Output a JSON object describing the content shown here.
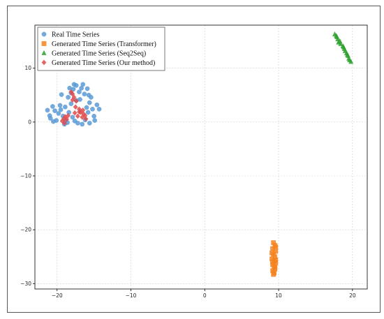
{
  "chart_data": {
    "type": "scatter",
    "xlim": [
      -23,
      22
    ],
    "ylim": [
      -31,
      18
    ],
    "x_ticks": [
      -20,
      -10,
      0,
      10,
      20
    ],
    "y_ticks": [
      10,
      0,
      -10,
      -20,
      -30
    ],
    "x_tick_labels": [
      "−20",
      "−10",
      "0",
      "10",
      "20"
    ],
    "y_tick_labels": [
      "10",
      "0",
      "−10",
      "−20",
      "−30"
    ],
    "grid": true,
    "legend_position": "top-left",
    "series": [
      {
        "name": "Real Time Series",
        "marker": "circle",
        "color": "#5b9bd5",
        "points": [
          [
            -20.6,
            2.9
          ],
          [
            -20.3,
            2.1
          ],
          [
            -21.0,
            1.2
          ],
          [
            -19.8,
            1.6
          ],
          [
            -20.9,
            0.7
          ],
          [
            -20.1,
            0.3
          ],
          [
            -19.5,
            2.3
          ],
          [
            -19.2,
            1.1
          ],
          [
            -18.8,
            0.4
          ],
          [
            -19.6,
            3.1
          ],
          [
            -21.3,
            2.2
          ],
          [
            -18.9,
            2.8
          ],
          [
            -18.1,
            3.4
          ],
          [
            -18.4,
            1.8
          ],
          [
            -17.9,
            0.9
          ],
          [
            -18.6,
            -0.1
          ],
          [
            -17.6,
            0.2
          ],
          [
            -20.5,
            0.1
          ],
          [
            -19.0,
            -0.4
          ],
          [
            -17.2,
            -0.2
          ],
          [
            -18.5,
            4.6
          ],
          [
            -18.1,
            5.4
          ],
          [
            -17.8,
            6.1
          ],
          [
            -17.4,
            6.8
          ],
          [
            -17.0,
            5.6
          ],
          [
            -16.7,
            6.3
          ],
          [
            -16.3,
            5.2
          ],
          [
            -15.9,
            6.2
          ],
          [
            -15.7,
            5.0
          ],
          [
            -15.4,
            4.6
          ],
          [
            -16.9,
            4.2
          ],
          [
            -17.7,
            7.0
          ],
          [
            -16.5,
            7.0
          ],
          [
            -18.3,
            6.3
          ],
          [
            -15.6,
            3.6
          ],
          [
            -15.2,
            2.4
          ],
          [
            -15.8,
            1.8
          ],
          [
            -14.3,
            2.4
          ],
          [
            -15.0,
            1.1
          ],
          [
            -14.9,
            0.3
          ],
          [
            -15.6,
            -0.2
          ],
          [
            -16.2,
            0.4
          ],
          [
            -16.6,
            -0.4
          ],
          [
            -19.4,
            5.1
          ],
          [
            -17.4,
            4.0
          ],
          [
            -14.6,
            3.2
          ],
          [
            -16.0,
            2.7
          ]
        ]
      },
      {
        "name": "Generated Time Series (Transformer)",
        "marker": "square",
        "color": "#f5821f",
        "points": [
          [
            9.3,
            -22.4
          ],
          [
            9.5,
            -22.9
          ],
          [
            9.2,
            -23.5
          ],
          [
            9.6,
            -24.0
          ],
          [
            9.3,
            -24.6
          ],
          [
            9.5,
            -25.0
          ],
          [
            9.1,
            -25.4
          ],
          [
            9.4,
            -25.8
          ],
          [
            9.6,
            -26.2
          ],
          [
            9.2,
            -26.5
          ],
          [
            9.4,
            -26.9
          ],
          [
            9.5,
            -27.3
          ],
          [
            9.2,
            -27.6
          ],
          [
            9.4,
            -28.0
          ],
          [
            9.3,
            -28.3
          ],
          [
            9.6,
            -23.2
          ],
          [
            9.1,
            -24.3
          ],
          [
            9.6,
            -25.6
          ],
          [
            9.2,
            -26.0
          ],
          [
            9.5,
            -27.0
          ]
        ]
      },
      {
        "name": "Generated Time Series (Seq2Seq)",
        "marker": "triangle",
        "color": "#2ca02c",
        "points": [
          [
            17.6,
            16.3
          ],
          [
            17.9,
            15.8
          ],
          [
            18.0,
            15.4
          ],
          [
            18.3,
            15.0
          ],
          [
            18.4,
            14.5
          ],
          [
            18.7,
            14.1
          ],
          [
            18.9,
            13.6
          ],
          [
            19.0,
            13.2
          ],
          [
            19.2,
            12.8
          ],
          [
            19.4,
            12.3
          ],
          [
            19.5,
            11.8
          ],
          [
            19.8,
            11.2
          ],
          [
            18.1,
            14.8
          ],
          [
            18.8,
            13.9
          ],
          [
            19.3,
            12.5
          ],
          [
            17.8,
            16.0
          ],
          [
            19.6,
            11.5
          ]
        ]
      },
      {
        "name": "Generated Time Series (Our method)",
        "marker": "diamond",
        "color": "#e04a4a",
        "points": [
          [
            -18.1,
            5.6
          ],
          [
            -17.9,
            5.2
          ],
          [
            -17.7,
            4.6
          ],
          [
            -17.9,
            4.1
          ],
          [
            -17.4,
            3.9
          ],
          [
            -17.5,
            2.8
          ],
          [
            -17.0,
            2.4
          ],
          [
            -16.8,
            1.8
          ],
          [
            -16.4,
            1.5
          ],
          [
            -16.2,
            1.2
          ],
          [
            -16.6,
            0.9
          ],
          [
            -17.2,
            1.1
          ],
          [
            -17.6,
            1.7
          ],
          [
            -18.5,
            1.2
          ],
          [
            -18.9,
            1.0
          ],
          [
            -19.1,
            0.6
          ],
          [
            -19.3,
            0.2
          ],
          [
            -18.7,
            0.5
          ],
          [
            -19.0,
            -0.2
          ],
          [
            -16.1,
            0.6
          ],
          [
            -17.0,
            1.9
          ],
          [
            -16.5,
            2.2
          ]
        ]
      }
    ]
  }
}
